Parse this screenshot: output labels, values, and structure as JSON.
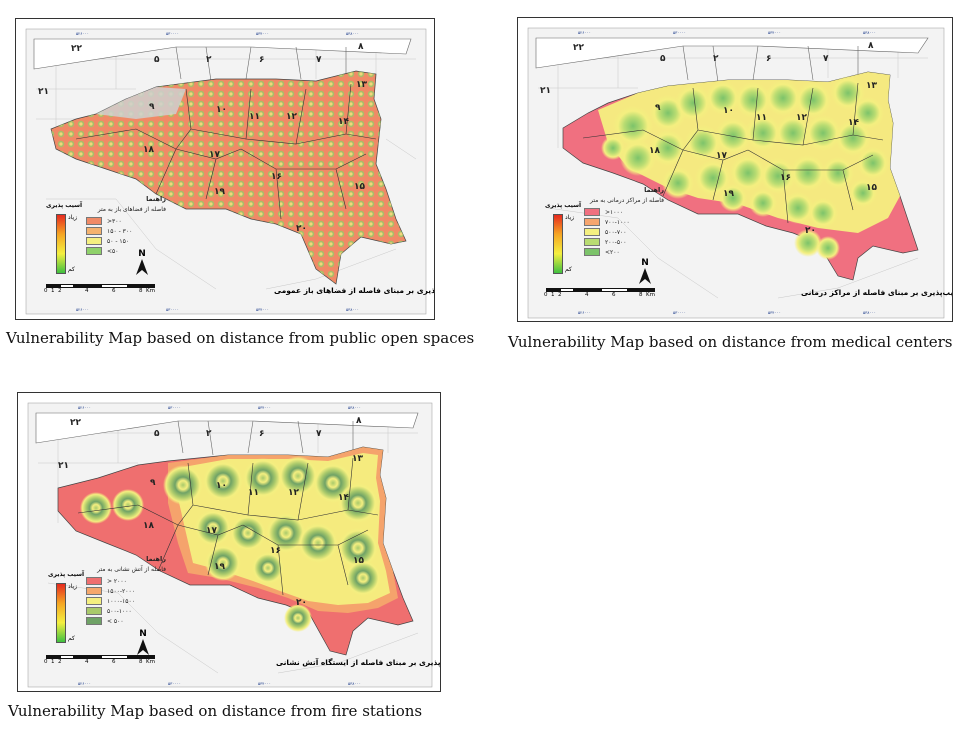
{
  "panels": [
    {
      "id": "open-spaces",
      "caption": "Vulnerability Map based on distance from public open spaces",
      "map_title": "نقشه آسیب‌پذیری بر مبنای فاصله از فضاهای باز عمومی",
      "legend_title": "راهنما",
      "legend_subtitle": "فاصله از فضاهای باز به متر",
      "legend_items": [
        {
          "label": ">۳۰۰",
          "color": "#f08a66"
        },
        {
          "label": "۱۵۰ - ۳۰۰",
          "color": "#f4b26e"
        },
        {
          "label": "۵۰ - ۱۵۰",
          "color": "#f4ef80"
        },
        {
          "label": "<۵۰",
          "color": "#8fd16a"
        }
      ],
      "vulnerability_title": "آسیب پذیری",
      "vulnerability_high": "زیاد",
      "vulnerability_low": "کم",
      "north": "N",
      "scale_ticks": [
        "0",
        "1",
        "2",
        "4",
        "6",
        "8"
      ],
      "scale_unit": "Km"
    },
    {
      "id": "medical-centers",
      "caption": "Vulnerability Map based on distance from medical centers",
      "map_title": "نقشه آسیب‌پذیری بر مبنای فاصله از مراکز درمانی",
      "legend_title": "راهنما",
      "legend_subtitle": "فاصله از مراکز درمانی به متر",
      "legend_items": [
        {
          "label": ">۱۰۰۰",
          "color": "#f07080"
        },
        {
          "label": "۷۰۰-۱۰۰۰",
          "color": "#f6a56e"
        },
        {
          "label": "۵۰۰-۷۰۰",
          "color": "#f4ef80"
        },
        {
          "label": "۲۰۰-۵۰۰",
          "color": "#b9dc72"
        },
        {
          "label": "<۲۰۰",
          "color": "#7cc36a"
        }
      ],
      "vulnerability_title": "آسیب پذیری",
      "vulnerability_high": "زیاد",
      "vulnerability_low": "کم",
      "north": "N",
      "scale_ticks": [
        "0",
        "1",
        "2",
        "4",
        "6",
        "8"
      ],
      "scale_unit": "Km"
    },
    {
      "id": "fire-stations",
      "caption": "Vulnerability Map based on distance from fire stations",
      "map_title": "نقشه آسیب‌پذیری بر مبنای فاصله از ایستگاه آتش نشانی",
      "legend_title": "راهنما",
      "legend_subtitle": "فاصله از آتش نشانی به متر",
      "legend_items": [
        {
          "label": "> ۲۰۰۰",
          "color": "#ef6f6f"
        },
        {
          "label": "۱۵۰۰-۲۰۰۰",
          "color": "#f5a86c"
        },
        {
          "label": "۱۰۰۰-۱۵۰۰",
          "color": "#f4ef80"
        },
        {
          "label": "۵۰۰-۱۰۰۰",
          "color": "#a9c96b"
        },
        {
          "label": "< ۵۰۰",
          "color": "#6fa266"
        }
      ],
      "vulnerability_title": "آسیب پذیری",
      "vulnerability_high": "زیاد",
      "vulnerability_low": "کم",
      "north": "N",
      "scale_ticks": [
        "0",
        "1",
        "2",
        "4",
        "6",
        "8"
      ],
      "scale_unit": "Km"
    }
  ],
  "district_numbers": [
    "۲۲",
    "۵",
    "۲",
    "۶",
    "۷",
    "۸",
    "۲۱",
    "۹",
    "۱۰",
    "۱۱",
    "۱۲",
    "۱۳",
    "۱۴",
    "۱۸",
    "۱۷",
    "۱۹",
    "۱۶",
    "۱۵",
    "۲۰"
  ]
}
